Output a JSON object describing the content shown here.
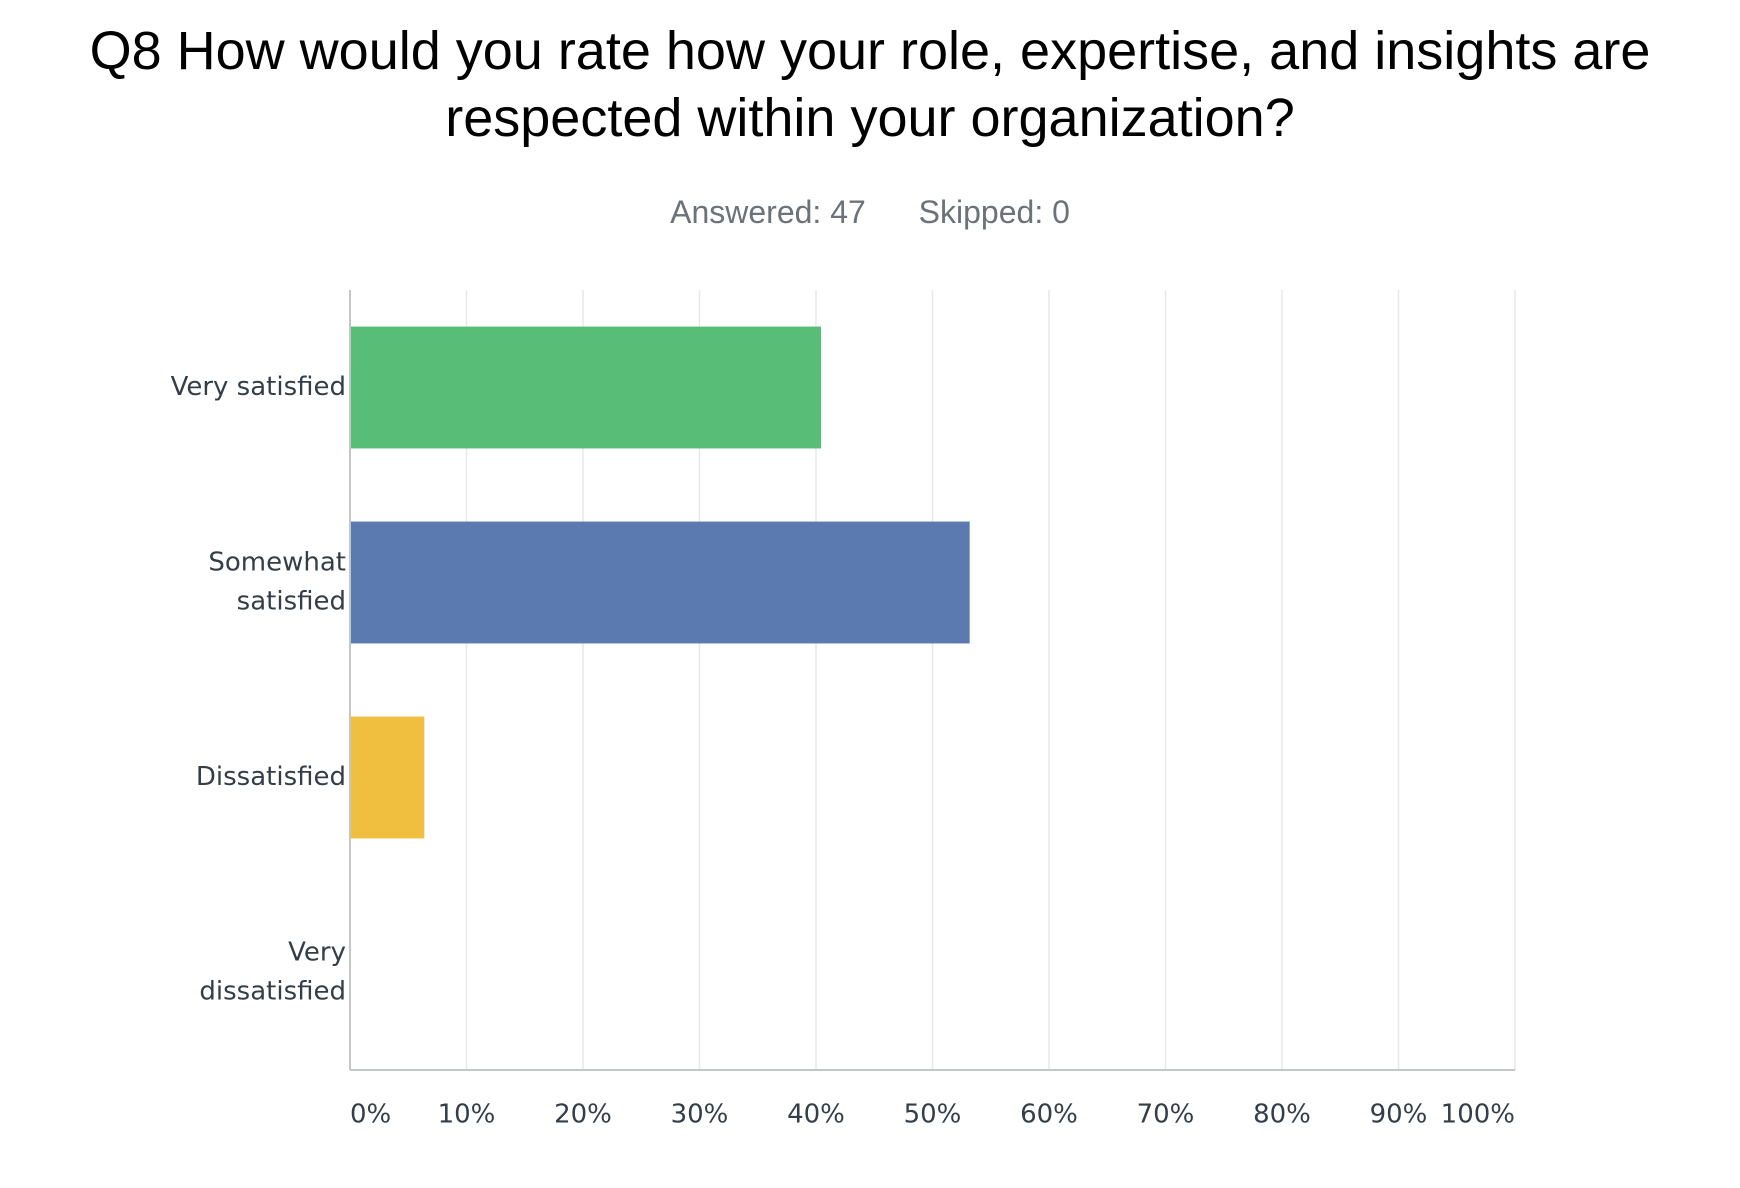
{
  "title_lines": [
    "Q8 How would you rate how your role, expertise, and insights are",
    "respected within your organization?"
  ],
  "stats": {
    "answered": "Answered: 47",
    "skipped": "Skipped: 0"
  },
  "chart_data": {
    "type": "bar",
    "orientation": "horizontal",
    "title": "Q8 How would you rate how your role, expertise, and insights are respected within your organization?",
    "categories": [
      [
        "Very satisfied"
      ],
      [
        "Somewhat",
        "satisfied"
      ],
      [
        "Dissatisfied"
      ],
      [
        "Very",
        "dissatisfied"
      ]
    ],
    "values": [
      40.43,
      53.19,
      6.38,
      0
    ],
    "colors": [
      "#57bd77",
      "#5a7ab0",
      "#f0bf40",
      "#d9d9d9"
    ],
    "xlim": [
      0,
      100
    ],
    "xticks": [
      0,
      10,
      20,
      30,
      40,
      50,
      60,
      70,
      80,
      90,
      100
    ],
    "xtick_labels": [
      "0%",
      "10%",
      "20%",
      "30%",
      "40%",
      "50%",
      "60%",
      "70%",
      "80%",
      "90%",
      "100%"
    ],
    "grid": true,
    "legend": "none"
  }
}
